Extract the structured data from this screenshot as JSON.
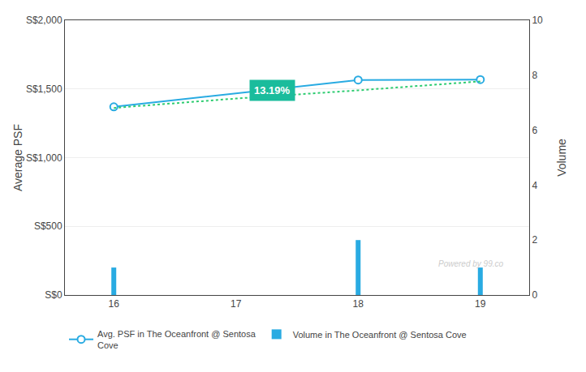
{
  "chart_data": {
    "type": "line",
    "y_label": "Average PSF",
    "y2_label": "Volume",
    "xlim": [
      15.6,
      19.4
    ],
    "xticks": [
      16,
      17,
      18,
      19
    ],
    "ylim": [
      0,
      2000
    ],
    "yticks": [
      {
        "value": 0,
        "label": "S$0"
      },
      {
        "value": 500,
        "label": "S$500"
      },
      {
        "value": 1000,
        "label": "S$1,000"
      },
      {
        "value": 1500,
        "label": "S$1,500"
      },
      {
        "value": 2000,
        "label": "S$2,000"
      }
    ],
    "y2lim": [
      0,
      10
    ],
    "y2ticks": [
      0,
      2,
      4,
      6,
      8,
      10
    ],
    "grid": true,
    "legend": "bottom",
    "series": [
      {
        "name": "Avg. PSF in The Oceanfront @ Sentosa\nCove",
        "type": "line",
        "color": "#29abe2",
        "marker": "circle",
        "x": [
          16,
          18,
          19
        ],
        "values": [
          1370,
          1565,
          1568
        ]
      },
      {
        "type": "line",
        "line_style": "dotted",
        "color": "#2ecc71",
        "x": [
          16,
          17,
          18,
          19
        ],
        "values": [
          1362,
          1430,
          1490,
          1555
        ]
      },
      {
        "name": "Volume in The Oceanfront @ Sentosa Cove",
        "type": "bar",
        "axis": "y2",
        "color": "#29abe2",
        "x": [
          16,
          18,
          19
        ],
        "values": [
          1,
          2,
          1
        ]
      }
    ],
    "annotations": [
      {
        "text": "13.19%",
        "x": 17.3,
        "y": 1490,
        "color": "#1abc9c"
      },
      {
        "text": "Powered by 99.co"
      }
    ]
  }
}
